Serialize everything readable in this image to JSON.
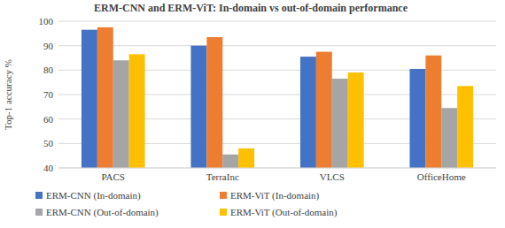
{
  "chart_data": {
    "type": "bar",
    "title": "ERM-CNN and ERM-ViT: In-domain vs out-of-domain performance",
    "y_label": "Top-1 accuracy %",
    "categories": [
      "PACS",
      "TerraInc",
      "VLCS",
      "OfficeHome"
    ],
    "series": [
      {
        "name": "ERM-CNN (In-domain)",
        "color": "#4472c4",
        "values": [
          96.5,
          90,
          85.5,
          80.5
        ]
      },
      {
        "name": "ERM-ViT (In-domain)",
        "color": "#ed7d31",
        "values": [
          97.5,
          93.5,
          87.5,
          86
        ]
      },
      {
        "name": "ERM-CNN (Out-of-domain)",
        "color": "#a5a5a5",
        "values": [
          84,
          45.5,
          76.5,
          64.5
        ]
      },
      {
        "name": "ERM-ViT (Out-of-domain)",
        "color": "#ffc000",
        "values": [
          86.5,
          48,
          79,
          73.5
        ]
      }
    ],
    "ylim": [
      40,
      100
    ],
    "yticks": [
      40,
      50,
      60,
      70,
      80,
      90,
      100
    ],
    "grid": true,
    "legend": "bottom"
  }
}
